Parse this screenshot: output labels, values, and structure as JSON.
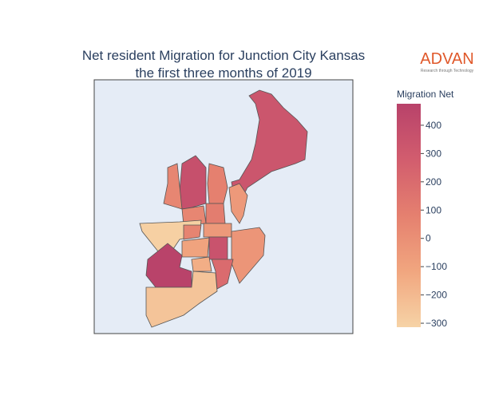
{
  "chart_data": {
    "type": "choropleth",
    "title": [
      "Net resident Migration for Junction City Kansas",
      "the first three months of 2019"
    ],
    "logo": {
      "name": "ADVAN",
      "tagline": "Research through Technology"
    },
    "colorbar_title": "Migration Net",
    "colorscale": [
      "#f6d3a6",
      "#f1a67f",
      "#e5806f",
      "#d25d6e",
      "#b8426a"
    ],
    "clim": [
      -314,
      476
    ],
    "ticks": [
      {
        "value": -300,
        "label": "−300"
      },
      {
        "value": -200,
        "label": "−200"
      },
      {
        "value": -100,
        "label": "−100"
      },
      0,
      100,
      200,
      300,
      400
    ],
    "values": [
      330,
      370,
      50,
      80,
      -50,
      50,
      100,
      -300,
      -50,
      60,
      -30,
      350,
      -100,
      470,
      -150,
      200,
      -250
    ]
  }
}
